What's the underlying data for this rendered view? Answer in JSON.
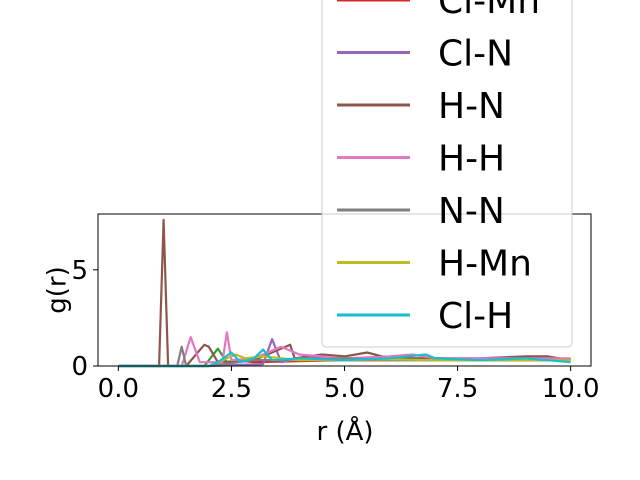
{
  "chart_data": {
    "type": "line",
    "xlabel": "r (Å)",
    "ylabel": "g(r)",
    "xlim": [
      -0.45,
      10.45
    ],
    "ylim": [
      0,
      7.9
    ],
    "xticks": [
      0.0,
      2.5,
      5.0,
      7.5,
      10.0
    ],
    "xtick_labels": [
      "0.0",
      "2.5",
      "5.0",
      "7.5",
      "10.0"
    ],
    "yticks": [
      0,
      5
    ],
    "ytick_labels": [
      "0",
      "5"
    ],
    "grid": false,
    "legend_placement": "upper-right",
    "series": [
      {
        "name": "Cl-Mn",
        "color": "#d62728",
        "x": [
          0,
          1.0,
          2.0,
          2.4,
          2.6,
          3.0,
          4.0,
          5.0,
          6.0,
          7.0,
          8.0,
          9.0,
          10.0
        ],
        "y": [
          0,
          0,
          0,
          0.1,
          0.3,
          0.2,
          0.25,
          0.3,
          0.3,
          0.35,
          0.3,
          0.3,
          0.3
        ]
      },
      {
        "name": "Cl-N",
        "color": "#9467bd",
        "x": [
          0,
          2.0,
          3.2,
          3.4,
          3.6,
          4.2,
          5.0,
          5.8,
          6.5,
          7.2,
          8.0,
          9.0,
          10.0
        ],
        "y": [
          0,
          0,
          0.1,
          1.4,
          0.2,
          0.5,
          0.3,
          0.5,
          0.4,
          0.4,
          0.3,
          0.4,
          0.3
        ]
      },
      {
        "name": "H-N",
        "color": "#8c564b",
        "x": [
          0,
          0.9,
          1.0,
          1.1,
          1.5,
          1.9,
          2.0,
          2.2,
          3.0,
          3.8,
          3.9,
          4.5,
          5.0,
          5.5,
          6.0,
          7.0,
          8.0,
          9.0,
          9.5,
          10.0
        ],
        "y": [
          0,
          0,
          7.6,
          0,
          0,
          1.1,
          1.0,
          0.2,
          0.3,
          1.1,
          0.4,
          0.6,
          0.5,
          0.7,
          0.4,
          0.4,
          0.4,
          0.5,
          0.5,
          0.3
        ]
      },
      {
        "name": "H-H",
        "color": "#e377c2",
        "x": [
          0,
          1.4,
          1.6,
          1.8,
          2.3,
          2.4,
          2.5,
          3.0,
          3.6,
          4.0,
          5.0,
          6.0,
          6.5,
          7.0,
          8.0,
          9.0,
          10.0
        ],
        "y": [
          0,
          0,
          1.5,
          0.2,
          0.2,
          1.75,
          0.3,
          0.4,
          1.0,
          0.6,
          0.4,
          0.5,
          0.6,
          0.4,
          0.4,
          0.4,
          0.4
        ]
      },
      {
        "name": "N-N",
        "color": "#7f7f7f",
        "x": [
          0,
          1.3,
          1.4,
          1.5,
          2.0,
          3.0,
          4.0,
          5.0,
          6.0,
          7.0,
          8.0,
          9.0,
          10.0
        ],
        "y": [
          0,
          0,
          1.0,
          0,
          0,
          0.3,
          0.3,
          0.4,
          0.3,
          0.3,
          0.3,
          0.3,
          0.3
        ]
      },
      {
        "name": "H-Mn",
        "color": "#bcbd22",
        "x": [
          0,
          2.0,
          2.6,
          2.8,
          3.2,
          4.0,
          5.0,
          6.0,
          7.0,
          8.0,
          9.0,
          10.0
        ],
        "y": [
          0,
          0,
          0.6,
          0.4,
          0.5,
          0.3,
          0.3,
          0.35,
          0.3,
          0.3,
          0.3,
          0.3
        ]
      },
      {
        "name": "Cl-H",
        "color": "#17becf",
        "x": [
          0,
          2.0,
          2.2,
          2.5,
          2.7,
          3.0,
          3.2,
          3.4,
          4.0,
          5.0,
          6.0,
          6.8,
          7.0,
          8.0,
          9.0,
          10.0
        ],
        "y": [
          0,
          0,
          0.2,
          0.7,
          0.2,
          0.4,
          0.85,
          0.3,
          0.4,
          0.3,
          0.4,
          0.6,
          0.4,
          0.3,
          0.4,
          0.2
        ]
      },
      {
        "name": "",
        "color": "#2ca02c",
        "x": [
          0,
          1.9,
          2.2,
          2.4,
          3.0,
          4.0,
          5.0,
          6.0,
          7.0,
          8.0,
          9.0,
          10.0
        ],
        "y": [
          0,
          0,
          0.9,
          0.2,
          0.3,
          0.3,
          0.3,
          0.3,
          0.3,
          0.3,
          0.3,
          0.3
        ]
      }
    ]
  }
}
